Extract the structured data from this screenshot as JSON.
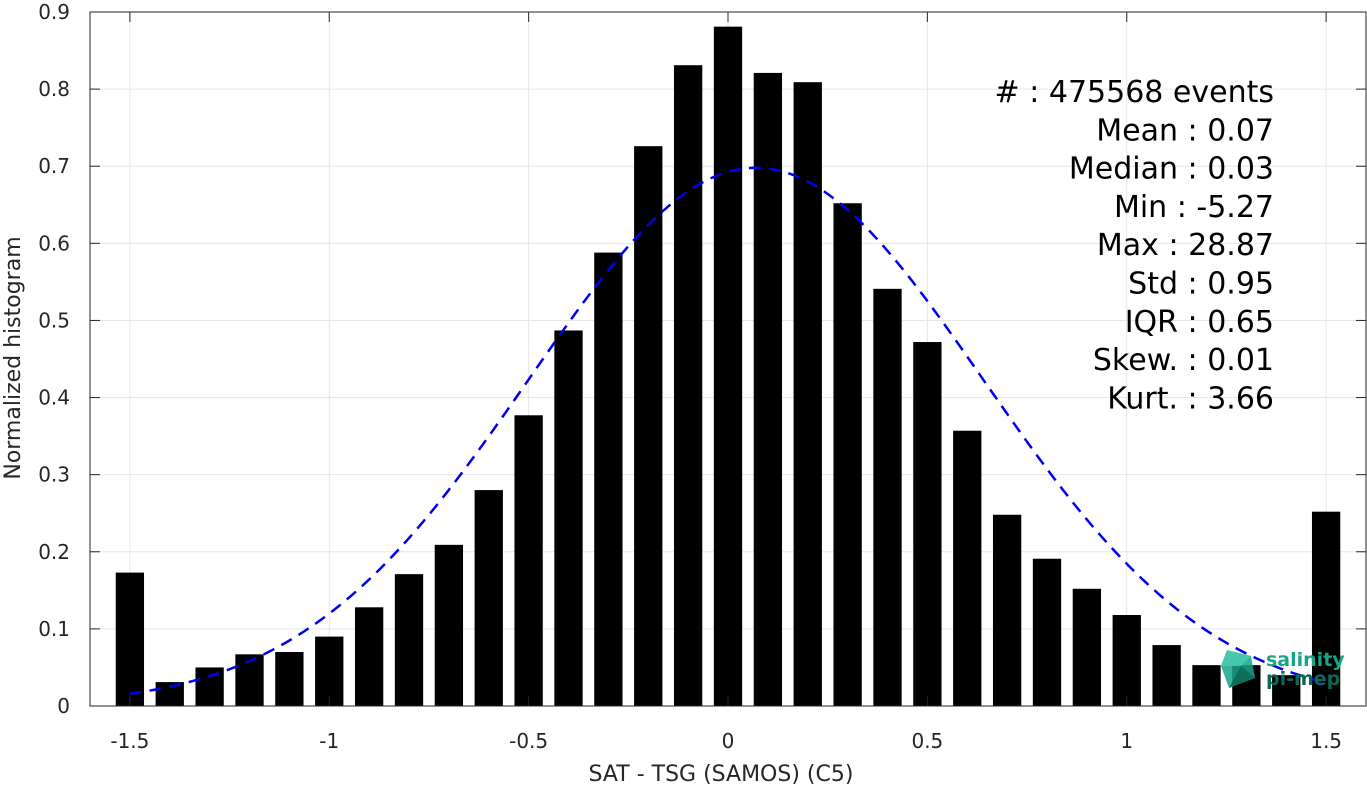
{
  "chart_data": {
    "type": "bar",
    "xlabel": "SAT - TSG (SAMOS) (C5)",
    "ylabel": "Normalized histogram",
    "xlim": [
      -1.6,
      1.6
    ],
    "ylim": [
      0,
      0.9
    ],
    "grid": true,
    "x_ticks": [
      -1.5,
      -1,
      -0.5,
      0,
      0.5,
      1,
      1.5
    ],
    "x_tick_labels": [
      "-1.5",
      "-1",
      "-0.5",
      "0",
      "0.5",
      "1",
      "1.5"
    ],
    "y_ticks": [
      0,
      0.1,
      0.2,
      0.3,
      0.4,
      0.5,
      0.6,
      0.7,
      0.8,
      0.9
    ],
    "y_tick_labels": [
      "0",
      "0.1",
      "0.2",
      "0.3",
      "0.4",
      "0.5",
      "0.6",
      "0.7",
      "0.8",
      "0.9"
    ],
    "bar_color": "#000000",
    "bin_width": 0.1,
    "x": [
      -1.5,
      -1.4,
      -1.3,
      -1.2,
      -1.1,
      -1.0,
      -0.9,
      -0.8,
      -0.7,
      -0.6,
      -0.5,
      -0.4,
      -0.3,
      -0.2,
      -0.1,
      0.0,
      0.1,
      0.2,
      0.3,
      0.4,
      0.5,
      0.6,
      0.7,
      0.8,
      0.9,
      1.0,
      1.1,
      1.2,
      1.3,
      1.4,
      1.5
    ],
    "values": [
      0.173,
      0.031,
      0.05,
      0.067,
      0.07,
      0.09,
      0.128,
      0.171,
      0.209,
      0.28,
      0.377,
      0.487,
      0.588,
      0.726,
      0.831,
      0.881,
      0.821,
      0.809,
      0.652,
      0.541,
      0.472,
      0.357,
      0.248,
      0.191,
      0.152,
      0.118,
      0.079,
      0.053,
      0.053,
      0.04,
      0.252
    ],
    "fit_curve": {
      "style": "dashed",
      "color": "#0000ee",
      "distribution": "normal",
      "mean": 0.07,
      "std": 0.57,
      "peak": 0.698,
      "x_range": [
        -1.5,
        1.5
      ]
    },
    "stats": [
      {
        "label": "#  : 475568 events"
      },
      {
        "label": "Mean : 0.07"
      },
      {
        "label": "Median : 0.03"
      },
      {
        "label": "Min : -5.27"
      },
      {
        "label": "Max : 28.87"
      },
      {
        "label": "Std : 0.95"
      },
      {
        "label": "IQR : 0.65"
      },
      {
        "label": "Skew. : 0.01"
      },
      {
        "label": "Kurt. : 3.66"
      }
    ]
  },
  "logo": {
    "line1": "salinity",
    "line2": "pi-mep",
    "color": "#17a589"
  }
}
